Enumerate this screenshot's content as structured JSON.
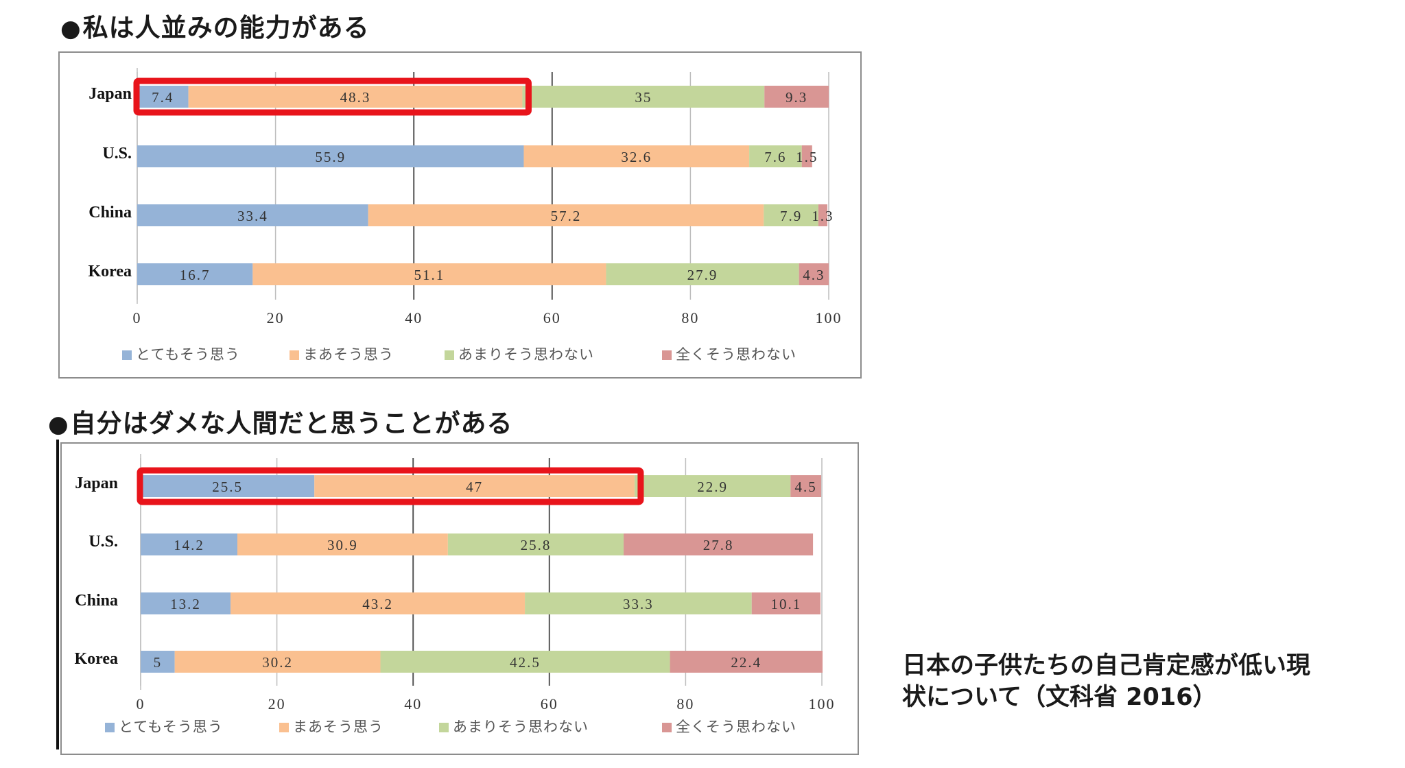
{
  "headings": {
    "chart1": "私は人並みの能力がある",
    "chart2": "自分はダメな人間だと思うことがある",
    "bullet": "●"
  },
  "side_note": {
    "line1": "日本の子供たちの自己肯定感が低い現",
    "line2": "状について（文科省 2016）"
  },
  "colors": {
    "strongly_agree": "#95b3d7",
    "somewhat_agree": "#fac090",
    "somewhat_disagree": "#c3d69b",
    "strongly_disagree": "#d99694",
    "highlight": "#e8141b"
  },
  "chart_data": [
    {
      "type": "bar",
      "orientation": "horizontal",
      "stacked": true,
      "title": "私は人並みの能力がある",
      "categories": [
        "Japan",
        "U.S.",
        "China",
        "Korea"
      ],
      "series": [
        {
          "name": "とてもそう思う",
          "values": [
            7.4,
            55.9,
            33.4,
            16.7
          ]
        },
        {
          "name": "まあそう思う",
          "values": [
            48.3,
            32.6,
            57.2,
            51.1
          ]
        },
        {
          "name": "あまりそう思わない",
          "values": [
            35,
            7.6,
            7.9,
            27.9
          ]
        },
        {
          "name": "全くそう思わない",
          "values": [
            9.3,
            1.5,
            1.3,
            4.3
          ]
        }
      ],
      "data_labels": [
        [
          "7.4",
          "55.9",
          "33.4",
          "16.7"
        ],
        [
          "48.3",
          "32.6",
          "57.2",
          "51.1"
        ],
        [
          "35",
          "7.6",
          "7.9",
          "27.9"
        ],
        [
          "9.3",
          "1.5",
          "1.3",
          "4.3"
        ]
      ],
      "xlim": [
        0,
        100
      ],
      "xticks": [
        "0",
        "20",
        "40",
        "60",
        "80",
        "100"
      ],
      "grid": true,
      "legend": "bottom",
      "highlight": {
        "category": "Japan",
        "series": [
          "とてもそう思う",
          "まあそう思う"
        ]
      }
    },
    {
      "type": "bar",
      "orientation": "horizontal",
      "stacked": true,
      "title": "自分はダメな人間だと思うことがある",
      "categories": [
        "Japan",
        "U.S.",
        "China",
        "Korea"
      ],
      "series": [
        {
          "name": "とてもそう思う",
          "values": [
            25.5,
            14.2,
            13.2,
            5
          ]
        },
        {
          "name": "まあそう思う",
          "values": [
            47,
            30.9,
            43.2,
            30.2
          ]
        },
        {
          "name": "あまりそう思わない",
          "values": [
            22.9,
            25.8,
            33.3,
            42.5
          ]
        },
        {
          "name": "全くそう思わない",
          "values": [
            4.5,
            27.8,
            10.1,
            22.4
          ]
        }
      ],
      "data_labels": [
        [
          "25.5",
          "14.2",
          "13.2",
          "5"
        ],
        [
          "47",
          "30.9",
          "43.2",
          "30.2"
        ],
        [
          "22.9",
          "25.8",
          "33.3",
          "42.5"
        ],
        [
          "4.5",
          "27.8",
          "10.1",
          "22.4"
        ]
      ],
      "xlim": [
        0,
        100
      ],
      "xticks": [
        "0",
        "20",
        "40",
        "60",
        "80",
        "100"
      ],
      "grid": true,
      "legend": "bottom",
      "highlight": {
        "category": "Japan",
        "series": [
          "とてもそう思う",
          "まあそう思う"
        ]
      }
    }
  ]
}
